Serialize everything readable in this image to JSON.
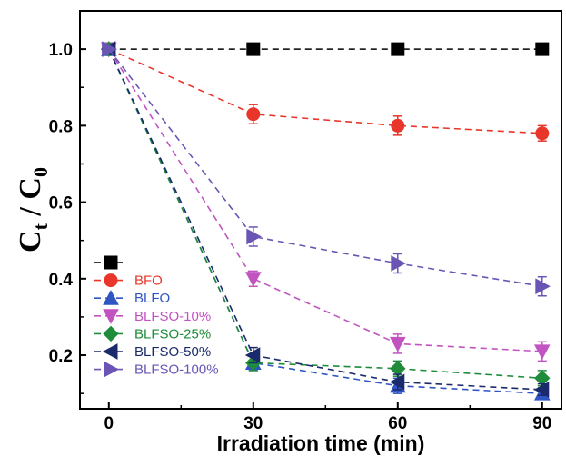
{
  "chart_data": {
    "type": "line",
    "title": "",
    "xlabel": "Irradiation time (min)",
    "ylabel": {
      "main": "C",
      "sub1": "t",
      "sep": " / ",
      "main2": "C",
      "sub2": "0"
    },
    "xlim": [
      -6,
      94
    ],
    "ylim": [
      0.06,
      1.1
    ],
    "x_ticks": [
      0,
      30,
      60,
      90
    ],
    "x_tick_labels": [
      "0",
      "30",
      "60",
      "90"
    ],
    "y_ticks": [
      0.2,
      0.4,
      0.6,
      0.8,
      1.0
    ],
    "y_tick_labels": [
      "0.2",
      "0.4",
      "0.6",
      "0.8",
      "1.0"
    ],
    "grid": false,
    "legend_position": "bottom-left",
    "x": [
      0,
      30,
      60,
      90
    ],
    "series": [
      {
        "name": "",
        "color": "#000000",
        "marker": "square",
        "values": [
          1.0,
          1.0,
          1.0,
          1.0
        ],
        "errors": [
          0,
          0,
          0,
          0
        ]
      },
      {
        "name": "BFO",
        "color": "#e8362a",
        "marker": "circle",
        "values": [
          1.0,
          0.83,
          0.8,
          0.78
        ],
        "errors": [
          0,
          0.025,
          0.025,
          0.02
        ]
      },
      {
        "name": "BLFO",
        "color": "#2f55c4",
        "marker": "triangle-up",
        "values": [
          1.0,
          0.18,
          0.12,
          0.1
        ],
        "errors": [
          0,
          0.02,
          0.02,
          0.015
        ]
      },
      {
        "name": "BLFSO-10%",
        "color": "#c154c1",
        "marker": "triangle-down",
        "values": [
          1.0,
          0.4,
          0.23,
          0.21
        ],
        "errors": [
          0,
          0.02,
          0.025,
          0.025
        ]
      },
      {
        "name": "BLFSO-25%",
        "color": "#1e8c3a",
        "marker": "diamond",
        "values": [
          1.0,
          0.18,
          0.165,
          0.14
        ],
        "errors": [
          0,
          0.02,
          0.02,
          0.02
        ]
      },
      {
        "name": "BLFSO-50%",
        "color": "#1b2a6b",
        "marker": "triangle-left",
        "values": [
          1.0,
          0.2,
          0.13,
          0.11
        ],
        "errors": [
          0,
          0.02,
          0.02,
          0.015
        ]
      },
      {
        "name": "BLFSO-100%",
        "color": "#6a55b5",
        "marker": "triangle-right",
        "values": [
          1.0,
          0.51,
          0.44,
          0.38
        ],
        "errors": [
          0,
          0.025,
          0.025,
          0.025
        ]
      }
    ]
  }
}
